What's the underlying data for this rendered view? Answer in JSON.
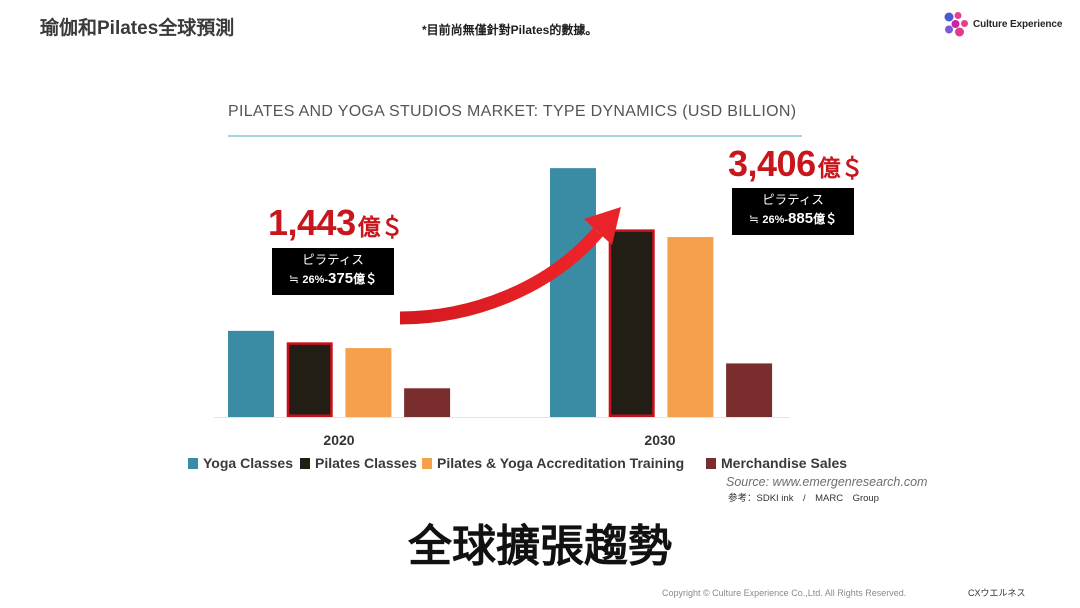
{
  "slide": {
    "title": "瑜伽和Pilates全球預測",
    "note": "*目前尚無僅針對Pilates的數據。",
    "headline": "全球擴張趨勢",
    "reference": "参考：SDKI ink　/　MARC　Group",
    "copyright": "Copyright © Culture Experience Co.,Ltd. All Rights Reserved.",
    "footer_brand": "CXウエルネス"
  },
  "logo": {
    "icon": "culture-experience-logo-icon",
    "text": "Culture Experience",
    "colors": [
      "#4b5ad2",
      "#e8408f",
      "#c4279f",
      "#e8408f",
      "#7a5ad6",
      "#e13b8b"
    ]
  },
  "chart_data": {
    "type": "bar",
    "title": "PILATES AND YOGA STUDIOS MARKET: TYPE DYNAMICS (USD BILLION)",
    "xlabel": "",
    "ylabel": "",
    "categories": [
      "2020",
      "2030"
    ],
    "series": [
      {
        "name": "Yoga Classes",
        "color": "#3a8ba4",
        "values": [
          45,
          130
        ]
      },
      {
        "name": "Pilates Classes",
        "color": "#221e16",
        "values": [
          39,
          98
        ],
        "highlighted": true
      },
      {
        "name": "Pilates & Yoga Accreditation Training",
        "color": "#f5a04c",
        "values": [
          36,
          94
        ]
      },
      {
        "name": "Merchandise Sales",
        "color": "#7a2d2d",
        "values": [
          15,
          28
        ]
      }
    ],
    "ylim": [
      0,
      140
    ],
    "y_axis_shown": false,
    "grid": false,
    "legend_position": "bottom",
    "highlight_outline_color": "#c8101a",
    "source": "Source: www.emergenresearch.com"
  },
  "callouts": [
    {
      "total": "1,443",
      "total_unit": "億＄",
      "label": "ピラティス",
      "approx": "≒",
      "share": "26%-",
      "amount": "375",
      "amount_unit": "億＄"
    },
    {
      "total": "3,406",
      "total_unit": "億＄",
      "label": "ピラティス",
      "approx": "≒",
      "share": "26%-",
      "amount": "885",
      "amount_unit": "億＄"
    }
  ],
  "colors": {
    "accent_red": "#c8161d",
    "arrow_red": "#e8232a",
    "title_underline": "#a9d5dc"
  }
}
